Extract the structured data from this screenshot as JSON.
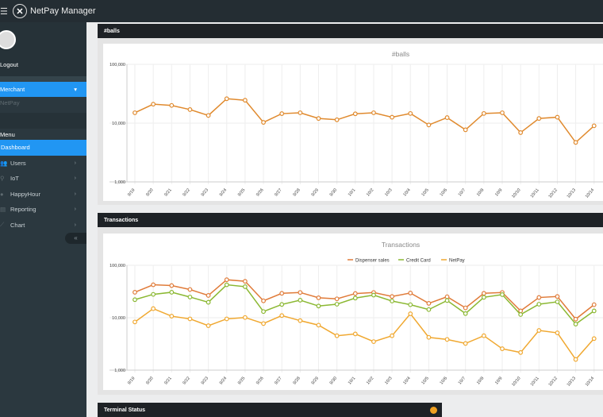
{
  "app": {
    "title": "NetPay Manager",
    "menu_icon": "hamburger-icon",
    "logo_icon": "netpay-logo-icon"
  },
  "sidebar": {
    "logout": "Logout",
    "merchant": "Merchant",
    "merchant_sub": "NetPay",
    "menu_header": "Menu",
    "items": [
      {
        "label": "Dashboard",
        "icon": "dashboard-icon"
      },
      {
        "label": "Users",
        "icon": "users-icon"
      },
      {
        "label": "IoT",
        "icon": "iot-icon"
      },
      {
        "label": "HappyHour",
        "icon": "happyhour-icon"
      },
      {
        "label": "Reporting",
        "icon": "reporting-icon"
      },
      {
        "label": "Chart",
        "icon": "chart-icon"
      }
    ],
    "collapse": "«"
  },
  "panels": {
    "balls": "#balls",
    "transactions": "Transactions",
    "terminal": "Terminal Status"
  },
  "colors": {
    "dispenser": "#e07b39",
    "credit": "#8bb832",
    "netpay": "#f0a830",
    "blue": "#2196f3"
  },
  "chart_data": [
    {
      "type": "line",
      "title": "#balls",
      "yscale": "log",
      "ylim": [
        1000,
        100000
      ],
      "yticks": [
        "1,000",
        "10,000",
        "100,000"
      ],
      "categories": [
        "9/19",
        "9/20",
        "9/21",
        "9/22",
        "9/23",
        "9/24",
        "9/25",
        "9/26",
        "9/27",
        "9/28",
        "9/29",
        "9/30",
        "10/1",
        "10/2",
        "10/3",
        "10/4",
        "10/5",
        "10/6",
        "10/7",
        "10/8",
        "10/9",
        "10/10",
        "10/11",
        "10/12",
        "10/13",
        "10/14"
      ],
      "series": [
        {
          "name": "#balls",
          "color": "#e08a2e",
          "values": [
            15000,
            21000,
            20000,
            17000,
            13500,
            26000,
            24500,
            10300,
            14500,
            15000,
            12000,
            11400,
            14400,
            15000,
            12600,
            14600,
            9300,
            12400,
            7700,
            14600,
            15000,
            6900,
            12000,
            12600,
            4700,
            9000
          ]
        }
      ]
    },
    {
      "type": "line",
      "title": "Transactions",
      "yscale": "log",
      "ylim": [
        1000,
        100000
      ],
      "yticks": [
        "1,000",
        "10,000",
        "100,000"
      ],
      "legend": "top",
      "categories": [
        "9/19",
        "9/20",
        "9/21",
        "9/22",
        "9/23",
        "9/24",
        "9/25",
        "9/26",
        "9/27",
        "9/28",
        "9/29",
        "9/30",
        "10/1",
        "10/2",
        "10/3",
        "10/4",
        "10/5",
        "10/6",
        "10/7",
        "10/8",
        "10/9",
        "10/10",
        "10/11",
        "10/12",
        "10/13",
        "10/14"
      ],
      "series": [
        {
          "name": "Dispenser sales",
          "color": "#e07b39",
          "values": [
            30600,
            42500,
            41000,
            34500,
            26600,
            53000,
            49500,
            21000,
            29200,
            30300,
            24000,
            22900,
            28900,
            30300,
            25400,
            29600,
            18800,
            25100,
            15400,
            29200,
            30300,
            13500,
            24300,
            25400,
            9400,
            17700
          ]
        },
        {
          "name": "Credit Card",
          "color": "#8bb832",
          "values": [
            22100,
            27900,
            30600,
            24800,
            19700,
            42500,
            39100,
            13100,
            17900,
            21600,
            16700,
            18100,
            23700,
            27000,
            20800,
            17700,
            14300,
            21300,
            12000,
            24500,
            27600,
            11500,
            18100,
            20100,
            7560,
            13500
          ]
        },
        {
          "name": "NetPay",
          "color": "#f0a830",
          "values": [
            8300,
            14900,
            10700,
            9500,
            7050,
            9500,
            10100,
            7740,
            11000,
            8800,
            7210,
            4530,
            4910,
            3500,
            4530,
            11900,
            4220,
            3850,
            3230,
            4530,
            2560,
            2170,
            5710,
            5150,
            1600,
            4000
          ]
        }
      ]
    }
  ]
}
